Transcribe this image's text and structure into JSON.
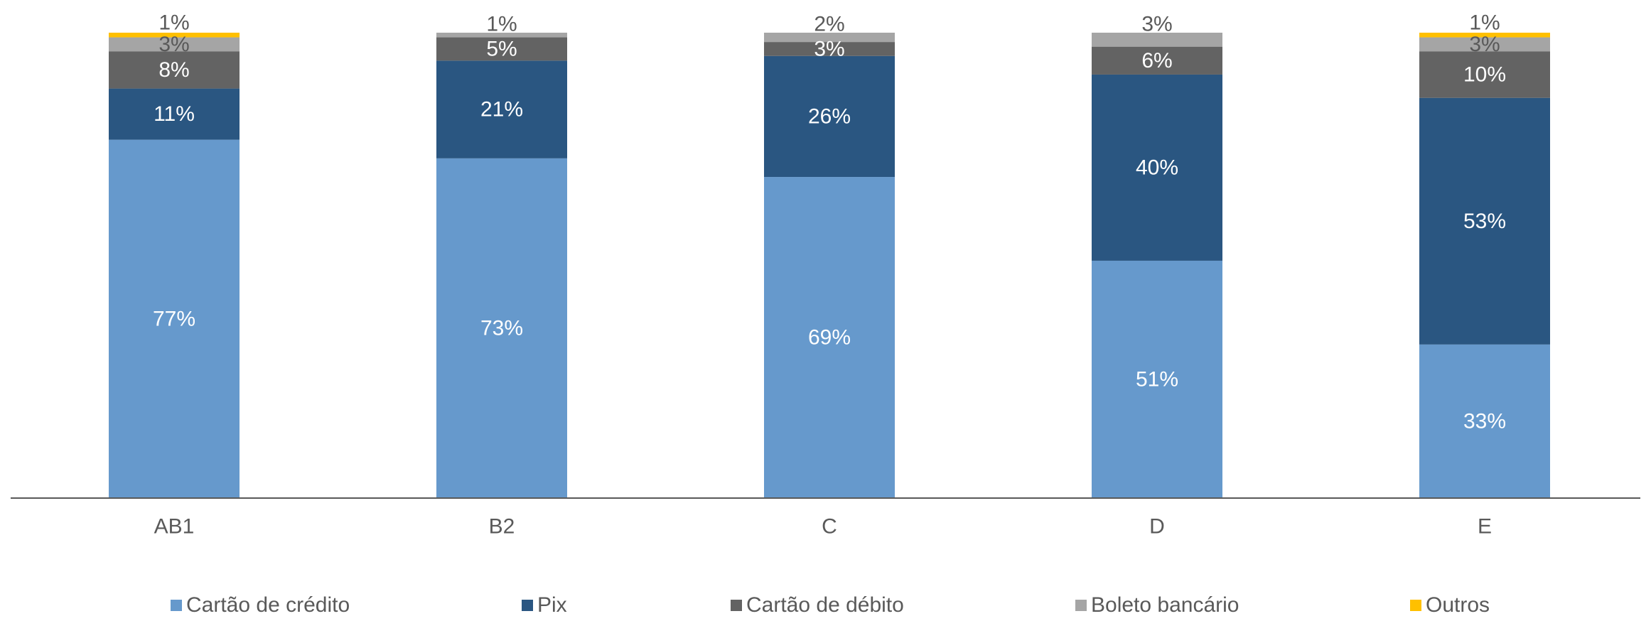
{
  "chart_data": {
    "type": "bar",
    "stacked": true,
    "categories": [
      "AB1",
      "B2",
      "C",
      "D",
      "E"
    ],
    "ylim": [
      0,
      100
    ],
    "grid": false,
    "legend_position": "bottom",
    "series": [
      {
        "name": "Cartão de crédito",
        "color": "#6699CC",
        "label_color": "#FFFFFF",
        "values": [
          77,
          73,
          69,
          51,
          33
        ],
        "labels": [
          "77%",
          "73%",
          "69%",
          "51%",
          "33%"
        ]
      },
      {
        "name": "Pix",
        "color": "#2A5681",
        "label_color": "#FFFFFF",
        "values": [
          11,
          21,
          26,
          40,
          53
        ],
        "labels": [
          "11%",
          "21%",
          "26%",
          "40%",
          "53%"
        ]
      },
      {
        "name": "Cartão de débito",
        "color": "#636363",
        "label_color": "#FFFFFF",
        "values": [
          8,
          5,
          3,
          6,
          10
        ],
        "labels": [
          "8%",
          "5%",
          "3%",
          "6%",
          "10%"
        ]
      },
      {
        "name": "Boleto bancário",
        "color": "#A5A5A5",
        "label_color": "#595959",
        "values": [
          3,
          1,
          2,
          3,
          3
        ],
        "labels": [
          "3%",
          "1%",
          "2%",
          "3%",
          "3%"
        ]
      },
      {
        "name": "Outros",
        "color": "#FFC000",
        "label_color": "#595959",
        "values": [
          1,
          0,
          0,
          0,
          1
        ],
        "labels": [
          "1%",
          "",
          "",
          "",
          "1%"
        ]
      }
    ]
  }
}
